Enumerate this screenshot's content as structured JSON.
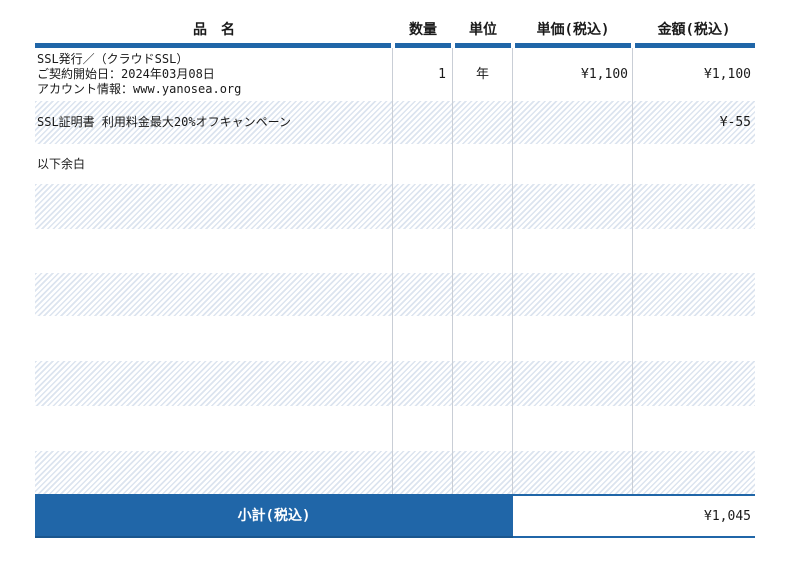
{
  "header": {
    "columns": [
      "品　名",
      "数量",
      "単位",
      "単価(税込)",
      "金額(税込)"
    ]
  },
  "rows": [
    {
      "item_lines": [
        "SSL発行／（クラウドSSL）",
        "ご契約開始日：2024年03月08日",
        "アカウント情報：www.yanosea.org"
      ],
      "qty": "1",
      "unit": "年",
      "unit_price": "¥1,100",
      "amount": "¥1,100"
    },
    {
      "item": "SSL証明書 利用料金最大20%オフキャンペーン",
      "qty": "",
      "unit": "",
      "unit_price": "",
      "amount": "¥-55"
    },
    {
      "item": "以下余白",
      "qty": "",
      "unit": "",
      "unit_price": "",
      "amount": ""
    }
  ],
  "footer": {
    "label": "小計(税込)",
    "amount": "¥1,045"
  },
  "colors": {
    "accent_blue": "#2066a8",
    "accent_blue_dark": "#1a568e",
    "stripe_blue": "#dce4ef",
    "divider_gray": "#c9ced6"
  }
}
